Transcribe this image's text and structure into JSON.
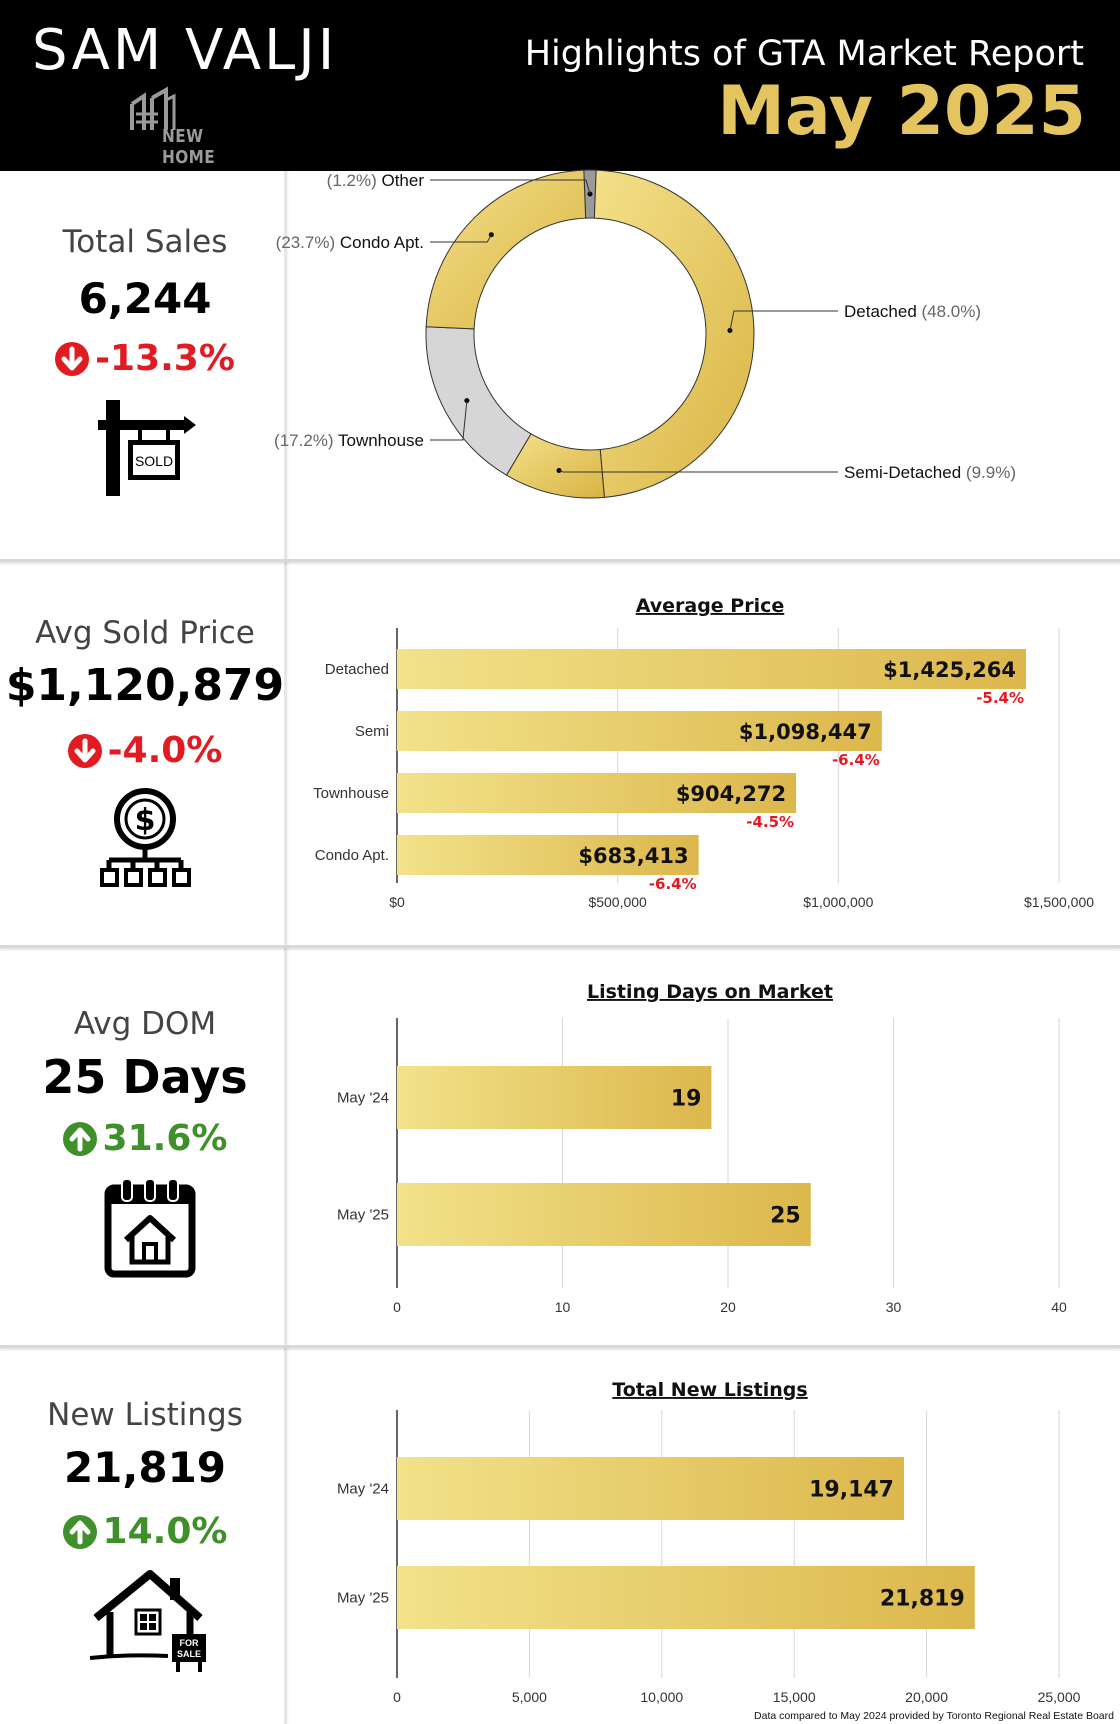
{
  "header": {
    "name": "SAM VALJI",
    "logo_text": "NEW HOME",
    "report_title": "Highlights of GTA Market Report",
    "report_date": "May 2025"
  },
  "colors": {
    "gold_light": "#f2e28a",
    "gold_dark": "#dcb74c",
    "down": "#e11b22",
    "up": "#3f8f2b",
    "townhouse": "#d6d6d6",
    "other": "#9a9a9a"
  },
  "stats": {
    "sales": {
      "label": "Total Sales",
      "value": "6,244",
      "change": "-13.3%",
      "direction": "down",
      "icon": "sold-sign-icon"
    },
    "price": {
      "label": "Avg Sold Price",
      "value": "$1,120,879",
      "change": "-4.0%",
      "direction": "down",
      "icon": "dollar-network-icon"
    },
    "dom": {
      "label": "Avg DOM",
      "value": "25 Days",
      "change": "31.6%",
      "direction": "up",
      "icon": "calendar-house-icon"
    },
    "listings": {
      "label": "New Listings",
      "value": "21,819",
      "change": "14.0%",
      "direction": "up",
      "icon": "house-for-sale-icon"
    }
  },
  "sign_texts": {
    "sold": "SOLD",
    "for_sale_1": "FOR",
    "for_sale_2": "SALE"
  },
  "chart_data": [
    {
      "type": "pie",
      "title": "",
      "categories": [
        "Detached",
        "Semi-Detached",
        "Townhouse",
        "Condo Apt.",
        "Other"
      ],
      "values": [
        48.0,
        9.9,
        17.2,
        23.7,
        1.2
      ],
      "labels": [
        "(48.0%)",
        "(9.9%)",
        "(17.2%)",
        "(23.7%)",
        "(1.2%)"
      ],
      "colors": [
        "#e8cc63",
        "#e8cc63",
        "#d6d6d6",
        "#eed775",
        "#9a9a9a"
      ]
    },
    {
      "type": "bar",
      "title": "Average Price",
      "categories": [
        "Detached",
        "Semi",
        "Townhouse",
        "Condo Apt."
      ],
      "values": [
        1425264,
        1098447,
        904272,
        683413
      ],
      "value_labels": [
        "$1,425,264",
        "$1,098,447",
        "$904,272",
        "$683,413"
      ],
      "change_labels": [
        "-5.4%",
        "-6.4%",
        "-4.5%",
        "-6.4%"
      ],
      "xlim": [
        0,
        1500000
      ],
      "xticks": [
        0,
        500000,
        1000000,
        1500000
      ],
      "xtick_labels": [
        "$0",
        "$500,000",
        "$1,000,000",
        "$1,500,000"
      ]
    },
    {
      "type": "bar",
      "title": "Listing Days on Market",
      "categories": [
        "May '24",
        "May '25"
      ],
      "values": [
        19,
        25
      ],
      "value_labels": [
        "19",
        "25"
      ],
      "xlim": [
        0,
        40
      ],
      "xticks": [
        0,
        10,
        20,
        30,
        40
      ],
      "xtick_labels": [
        "0",
        "10",
        "20",
        "30",
        "40"
      ]
    },
    {
      "type": "bar",
      "title": "Total New Listings",
      "categories": [
        "May '24",
        "May '25"
      ],
      "values": [
        19147,
        21819
      ],
      "value_labels": [
        "19,147",
        "21,819"
      ],
      "xlim": [
        0,
        25000
      ],
      "xticks": [
        0,
        5000,
        10000,
        15000,
        20000,
        25000
      ],
      "xtick_labels": [
        "0",
        "5,000",
        "10,000",
        "15,000",
        "20,000",
        "25,000"
      ]
    }
  ],
  "footnote": "Data compared to May 2024 provided by Toronto Regional Real Estate Board"
}
